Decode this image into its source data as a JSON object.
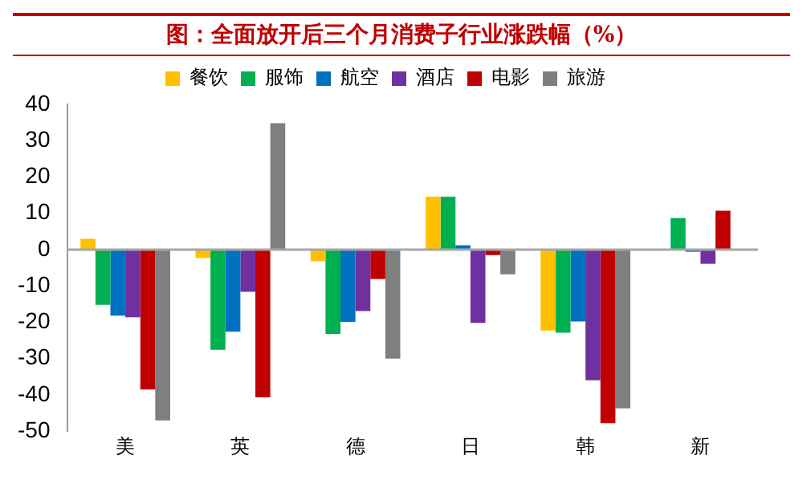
{
  "chart_data": {
    "type": "bar",
    "title": "图：全面放开后三个月消费子行业涨跌幅（%）",
    "categories": [
      "美",
      "英",
      "德",
      "日",
      "韩",
      "新"
    ],
    "series": [
      {
        "name": "餐饮",
        "color": "#ffc000",
        "values": [
          3,
          -2.3,
          -3.2,
          14.6,
          -22.3,
          null
        ]
      },
      {
        "name": "服饰",
        "color": "#00b050",
        "values": [
          -15.2,
          -27.6,
          -23.2,
          14.6,
          -22.9,
          8.7
        ]
      },
      {
        "name": "航空",
        "color": "#0070c0",
        "values": [
          -18.2,
          -22.6,
          -19.9,
          1.2,
          -19.8,
          -0.6
        ]
      },
      {
        "name": "酒店",
        "color": "#7030a0",
        "values": [
          -18.6,
          -11.6,
          -16.9,
          -20.2,
          -36,
          -3.9
        ]
      },
      {
        "name": "电影",
        "color": "#c00000",
        "values": [
          -38.5,
          -40.7,
          -8.1,
          -1.5,
          -47.8,
          10.7
        ]
      },
      {
        "name": "旅游",
        "color": "#7f7f7f",
        "values": [
          -47,
          34.8,
          -30,
          -6.8,
          -43.7,
          null
        ]
      }
    ],
    "ylim": [
      -50,
      40
    ],
    "yticks": [
      -50,
      -40,
      -30,
      -20,
      -10,
      0,
      10,
      20,
      30,
      40
    ],
    "ref_lines": [
      {
        "axis": "y",
        "value": 0,
        "color": "#a6a6a6"
      }
    ],
    "grid": false,
    "legend": "top"
  }
}
